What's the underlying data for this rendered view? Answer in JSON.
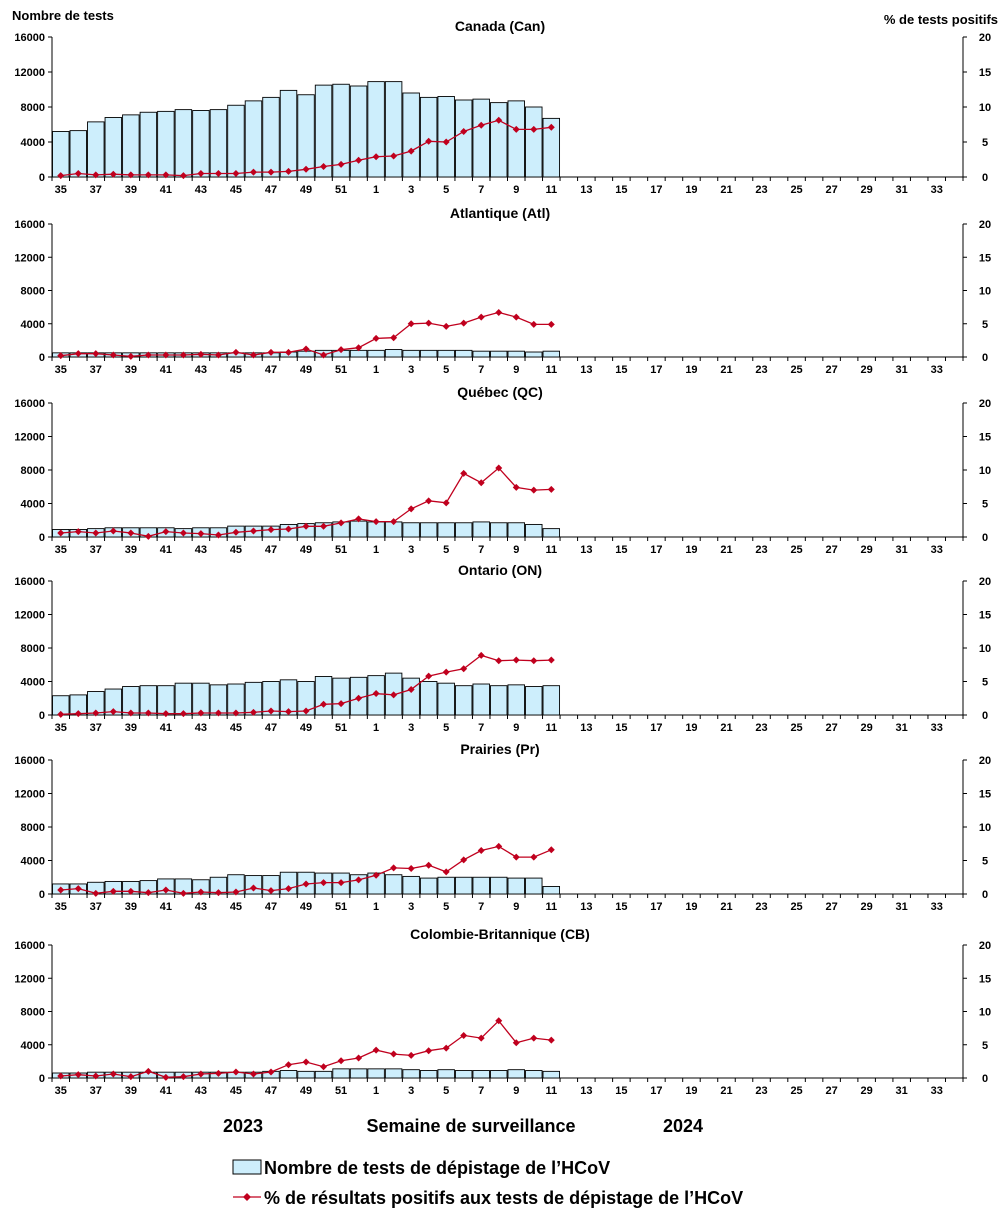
{
  "labels": {
    "left_axis_title": "Nombre de tests",
    "right_axis_title": "% de tests positifs",
    "x_axis_title": "Semaine de surveillance",
    "year_left": "2023",
    "year_right": "2024",
    "legend_bars": "Nombre de tests de dépistage de l’HCoV",
    "legend_line": "% de résultats positifs aux tests de dépistage de l’HCoV"
  },
  "colors": {
    "bar_fill": "#cdeefc",
    "bar_stroke": "#000000",
    "line": "#c0001e",
    "marker": "#c0001e"
  },
  "chart_data": {
    "type": "bar+line",
    "weeks": [
      35,
      36,
      37,
      38,
      39,
      40,
      41,
      42,
      43,
      44,
      45,
      46,
      47,
      48,
      49,
      50,
      51,
      52,
      1,
      2,
      3,
      4,
      5,
      6,
      7,
      8,
      9,
      10,
      11,
      12,
      13,
      14,
      15,
      16,
      17,
      18,
      19,
      20,
      21,
      22,
      23,
      24,
      25,
      26,
      27,
      28,
      29,
      30,
      31,
      32,
      33,
      34
    ],
    "x_tick_labels": [
      "35",
      "37",
      "39",
      "41",
      "43",
      "45",
      "47",
      "49",
      "51",
      "1",
      "3",
      "5",
      "7",
      "9",
      "11",
      "13",
      "15",
      "17",
      "19",
      "21",
      "23",
      "25",
      "27",
      "29",
      "31",
      "33"
    ],
    "y_left_ticks": [
      "0",
      "4000",
      "8000",
      "12000",
      "16000"
    ],
    "y_right_ticks": [
      "0",
      "5",
      "10",
      "15",
      "20"
    ],
    "ylim_left": [
      0,
      16000
    ],
    "ylim_right": [
      0,
      20
    ],
    "panels": [
      {
        "title": "Canada (Can)",
        "tests": [
          5200,
          5300,
          6300,
          6800,
          7100,
          7400,
          7500,
          7700,
          7600,
          7700,
          8200,
          8700,
          9100,
          9900,
          9400,
          10500,
          10600,
          10400,
          10900,
          10900,
          9600,
          9100,
          9200,
          8800,
          8900,
          8500,
          8700,
          8000,
          6700
        ],
        "pct_positive": [
          0.2,
          0.5,
          0.3,
          0.4,
          0.3,
          0.3,
          0.3,
          0.2,
          0.5,
          0.5,
          0.5,
          0.7,
          0.7,
          0.8,
          1.1,
          1.5,
          1.8,
          2.4,
          2.9,
          3.0,
          3.7,
          5.1,
          5.0,
          6.5,
          7.4,
          8.1,
          6.8,
          6.8,
          7.1
        ]
      },
      {
        "title": "Atlantique (Atl)",
        "tests": [
          500,
          500,
          500,
          500,
          500,
          500,
          500,
          500,
          500,
          500,
          500,
          500,
          500,
          600,
          700,
          800,
          800,
          800,
          800,
          900,
          800,
          800,
          800,
          800,
          700,
          700,
          700,
          600,
          700
        ],
        "pct_positive": [
          0.2,
          0.5,
          0.5,
          0.3,
          0.1,
          0.3,
          0.3,
          0.3,
          0.4,
          0.3,
          0.7,
          0.3,
          0.7,
          0.7,
          1.2,
          0.3,
          1.1,
          1.4,
          2.8,
          2.9,
          5.0,
          5.1,
          4.6,
          5.1,
          6.0,
          6.7,
          6.0,
          4.9,
          4.9
        ]
      },
      {
        "title": "Québec (QC)",
        "tests": [
          900,
          900,
          1000,
          1100,
          1100,
          1100,
          1100,
          1000,
          1100,
          1100,
          1300,
          1300,
          1300,
          1500,
          1600,
          1700,
          1800,
          1900,
          1800,
          1800,
          1700,
          1700,
          1700,
          1700,
          1800,
          1700,
          1700,
          1500,
          1000
        ],
        "pct_positive": [
          0.6,
          0.8,
          0.6,
          0.9,
          0.6,
          0.1,
          0.8,
          0.6,
          0.5,
          0.3,
          0.7,
          0.9,
          1.1,
          1.2,
          1.6,
          1.6,
          2.1,
          2.7,
          2.3,
          2.3,
          4.2,
          5.4,
          5.1,
          9.5,
          8.1,
          10.3,
          7.4,
          7.0,
          7.1
        ]
      },
      {
        "title": "Ontario (ON)",
        "tests": [
          2300,
          2400,
          2800,
          3100,
          3400,
          3500,
          3500,
          3800,
          3800,
          3600,
          3700,
          3900,
          4000,
          4200,
          4000,
          4600,
          4400,
          4500,
          4700,
          5000,
          4400,
          4000,
          3800,
          3500,
          3700,
          3500,
          3600,
          3400,
          3500
        ],
        "pct_positive": [
          0.1,
          0.2,
          0.3,
          0.5,
          0.3,
          0.3,
          0.2,
          0.2,
          0.3,
          0.3,
          0.3,
          0.4,
          0.6,
          0.5,
          0.6,
          1.6,
          1.7,
          2.5,
          3.2,
          3.0,
          3.8,
          5.8,
          6.4,
          6.9,
          8.9,
          8.1,
          8.2,
          8.1,
          8.2
        ]
      },
      {
        "title": "Prairies (Pr)",
        "tests": [
          1200,
          1200,
          1400,
          1500,
          1500,
          1600,
          1800,
          1800,
          1700,
          2000,
          2300,
          2200,
          2200,
          2600,
          2600,
          2500,
          2500,
          2300,
          2500,
          2300,
          2100,
          1900,
          2000,
          2000,
          2000,
          2000,
          1900,
          1900,
          900
        ],
        "pct_positive": [
          0.6,
          0.8,
          0.1,
          0.4,
          0.4,
          0.2,
          0.6,
          0.1,
          0.3,
          0.2,
          0.3,
          0.9,
          0.5,
          0.8,
          1.5,
          1.7,
          1.7,
          2.1,
          2.8,
          3.9,
          3.8,
          4.3,
          3.3,
          5.1,
          6.5,
          7.1,
          5.5,
          5.5,
          6.6
        ]
      },
      {
        "title": "Colombie-Britannique (CB)",
        "tests": [
          600,
          600,
          700,
          700,
          700,
          700,
          700,
          700,
          700,
          700,
          700,
          700,
          800,
          900,
          800,
          800,
          1100,
          1100,
          1100,
          1100,
          1000,
          900,
          1000,
          900,
          900,
          900,
          1000,
          900,
          800
        ],
        "pct_positive": [
          0.3,
          0.5,
          0.3,
          0.6,
          0.2,
          1.0,
          0.1,
          0.2,
          0.6,
          0.7,
          0.9,
          0.6,
          0.9,
          2.0,
          2.4,
          1.7,
          2.6,
          3.0,
          4.2,
          3.6,
          3.4,
          4.1,
          4.5,
          6.4,
          6.0,
          8.6,
          5.3,
          6.0,
          5.7
        ]
      }
    ]
  }
}
